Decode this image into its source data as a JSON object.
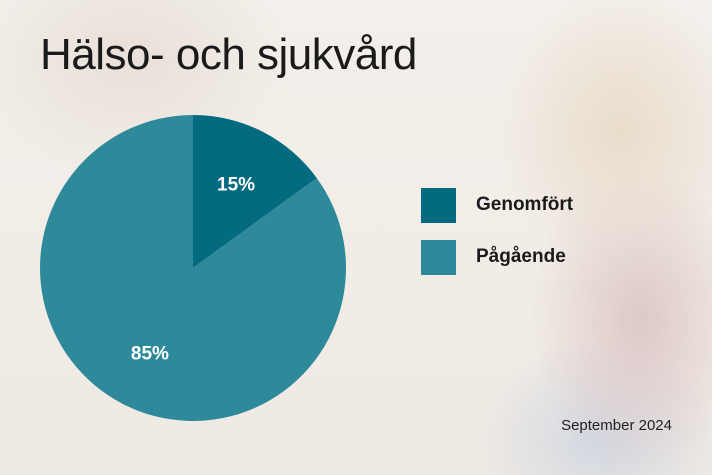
{
  "chart_data": {
    "type": "pie",
    "title": "Hälso- och sjukvård",
    "slices": [
      {
        "name": "Genomfört",
        "value": 15,
        "label": "15%",
        "color": "#036a7f"
      },
      {
        "name": "Pågående",
        "value": 85,
        "label": "85%",
        "color": "#2e8a9b"
      }
    ],
    "legend_position": "right",
    "start_angle": "12 o'clock, clockwise"
  },
  "footer": {
    "date": "September 2024"
  }
}
